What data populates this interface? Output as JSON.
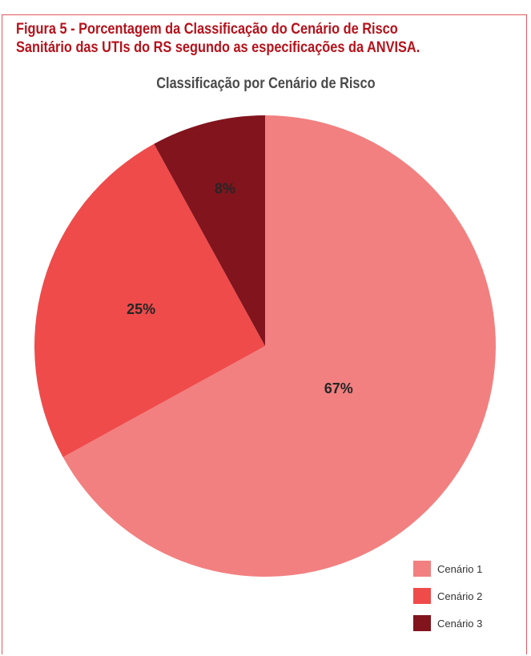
{
  "figure": {
    "title_line1": "Figura 5 - Porcentagem da Classificação do Cenário de Risco",
    "title_line2": "Sanitário das UTIs do RS segundo as especificações da ANVISA."
  },
  "chart_data": {
    "type": "pie",
    "title": "Classificação por Cenário de Risco",
    "categories": [
      "Cenário 1",
      "Cenário 2",
      "Cenário 3"
    ],
    "values": [
      67,
      25,
      8
    ],
    "labels": [
      "67%",
      "25%",
      "8%"
    ],
    "colors": [
      "#f28080",
      "#ef4b4b",
      "#82141d"
    ],
    "start": "top",
    "direction": "clockwise",
    "legend_position": "bottom-right"
  }
}
